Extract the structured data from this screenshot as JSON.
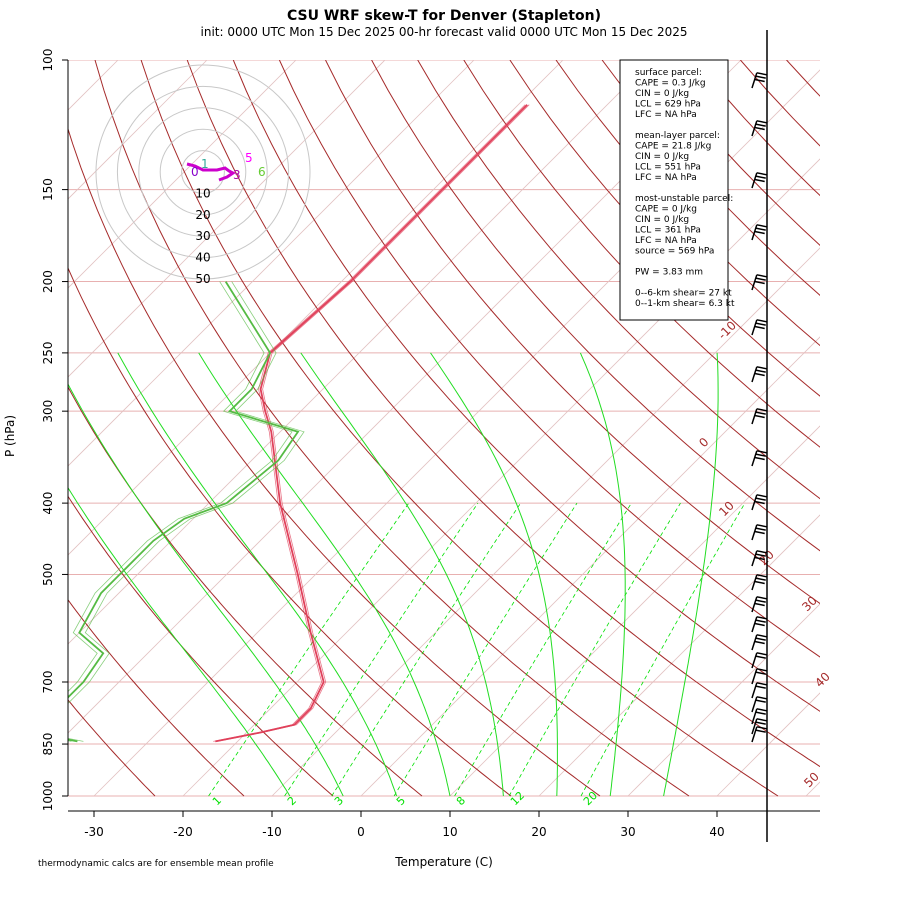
{
  "title": "CSU WRF skew-T for Denver (Stapleton)",
  "subtitle": "init: 0000 UTC Mon 15 Dec 2025    00-hr forecast valid 0000 UTC Mon 15 Dec 2025",
  "footnote": "thermodynamic calcs are for ensemble mean profile",
  "stats": [
    "surface parcel:",
    "CAPE = 0.3 J/kg",
    "CIN = 0 J/kg",
    "LCL = 629 hPa",
    "LFC = NA hPa",
    "",
    "mean-layer parcel:",
    "CAPE = 21.8 J/kg",
    "CIN = 0 J/kg",
    "LCL = 551 hPa",
    "LFC = NA hPa",
    "",
    "most-unstable parcel:",
    "CAPE = 0 J/kg",
    "CIN = 0 J/kg",
    "LCL = 361 hPa",
    "LFC = NA hPa",
    "source = 569 hPa",
    "",
    "PW =  3.83 mm",
    "",
    "0--6-km shear= 27 kt",
    "0--1-km shear= 6.3 kt"
  ],
  "colors": {
    "isotherm": "#a52a2a",
    "mixing_ratio": "#00e000",
    "temperature": "#e0405a",
    "dewpoint": "#55bb44",
    "isobar": "#e8b0b0",
    "hodo_ring": "#c8c8c8"
  },
  "chart_data": {
    "type": "skew-T log-P",
    "xlabel": "Temperature (C)",
    "ylabel": "P (hPa)",
    "xlim": [
      -33,
      44
    ],
    "ylim": [
      1000,
      100
    ],
    "y_scale": "log",
    "x_ticks": [
      -30,
      -20,
      -10,
      0,
      10,
      20,
      30,
      40
    ],
    "pressure_ticks": [
      100,
      150,
      200,
      250,
      300,
      400,
      500,
      700,
      850,
      1000
    ],
    "isotherm_labels": [
      "-10",
      "0",
      "10",
      "20",
      "30",
      "40",
      "50"
    ],
    "mixing_ratio_labels": [
      "1",
      "2",
      "3",
      "5",
      "8",
      "12",
      "20"
    ],
    "temperature_profile": {
      "pressure": [
        843,
        820,
        800,
        760,
        700,
        600,
        500,
        400,
        320,
        300,
        280,
        250,
        200,
        150,
        120,
        115
      ],
      "temperature": [
        -22.5,
        -18.5,
        -15.5,
        -15.5,
        -17,
        -24,
        -32,
        -42,
        -51,
        -54,
        -57,
        -60,
        -59,
        -59,
        -59,
        -59
      ]
    },
    "dewpoint_profile": {
      "pressure": [
        843,
        820,
        800,
        760,
        700,
        640,
        600,
        530,
        500,
        450,
        420,
        400,
        350,
        320,
        300,
        280,
        250,
        200
      ],
      "dewpoint": [
        -38,
        -44,
        -47,
        -44,
        -44,
        -45,
        -50,
        -52,
        -52,
        -52,
        -51,
        -48,
        -47,
        -48,
        -58,
        -58,
        -60,
        -73
      ]
    },
    "hodograph": {
      "rings_kt": [
        10,
        20,
        30,
        40,
        50
      ],
      "labels": [
        "0",
        "1",
        "3",
        "5",
        "6"
      ]
    }
  }
}
